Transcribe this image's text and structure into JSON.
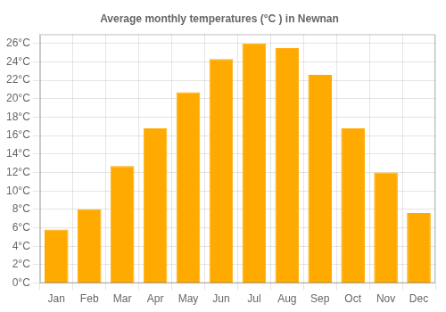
{
  "chart_data": {
    "type": "bar",
    "title": "Average monthly temperatures (°C ) in Newnan",
    "categories": [
      "Jan",
      "Feb",
      "Mar",
      "Apr",
      "May",
      "Jun",
      "Jul",
      "Aug",
      "Sep",
      "Oct",
      "Nov",
      "Dec"
    ],
    "values": [
      5.8,
      8.0,
      12.7,
      16.8,
      20.7,
      24.3,
      26.0,
      25.5,
      22.6,
      16.8,
      12.0,
      7.6
    ],
    "color": "#FFAA00",
    "ylim": [
      0,
      27
    ],
    "yticks": [
      {
        "value": 0,
        "label": "0°C"
      },
      {
        "value": 2,
        "label": "2°C"
      },
      {
        "value": 4,
        "label": "4°C"
      },
      {
        "value": 6,
        "label": "6°C"
      },
      {
        "value": 8,
        "label": "8°C"
      },
      {
        "value": 10,
        "label": "10°C"
      },
      {
        "value": 12,
        "label": "12°C"
      },
      {
        "value": 14,
        "label": "14°C"
      },
      {
        "value": 16,
        "label": "16°C"
      },
      {
        "value": 18,
        "label": "18°C"
      },
      {
        "value": 20,
        "label": "20°C"
      },
      {
        "value": 22,
        "label": "22°C"
      },
      {
        "value": 24,
        "label": "24°C"
      },
      {
        "value": 26,
        "label": "26°C"
      }
    ],
    "grid": true
  }
}
